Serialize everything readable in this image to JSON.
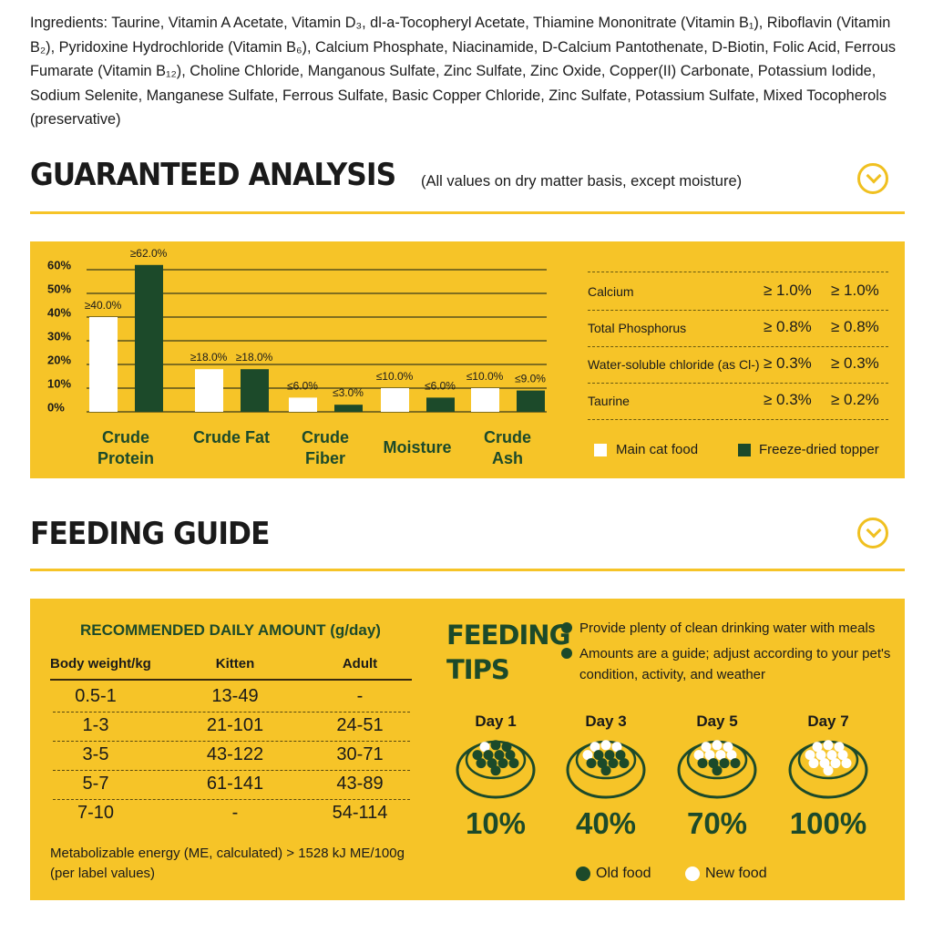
{
  "ingredients": "Ingredients: Taurine, Vitamin A Acetate, Vitamin D₃, dl-a-Tocopheryl Acetate, Thiamine Mononitrate (Vitamin B₁), Riboflavin (Vitamin B₂), Pyridoxine Hydrochloride (Vitamin B₆), Calcium Phosphate, Niacinamide, D-Calcium Pantothenate, D-Biotin, Folic Acid, Ferrous Fumarate (Vitamin B₁₂), Choline Chloride, Manganous Sulfate, Zinc Sulfate, Zinc Oxide, Copper(II) Carbonate, Potassium Iodide, Sodium Selenite, Manganese Sulfate, Ferrous Sulfate, Basic Copper Chloride, Zinc Sulfate, Potassium Sulfate, Mixed Tocopherols (preservative)",
  "analysis": {
    "title": "GUARANTEED ANALYSIS",
    "subtitle": "(All values on dry matter basis, except moisture)",
    "table": [
      [
        "Calcium",
        "≥ 1.0%",
        "≥ 1.0%"
      ],
      [
        "Total Phosphorus",
        "≥ 0.8%",
        "≥ 0.8%"
      ],
      [
        "Water-soluble chloride (as Cl-)",
        "≥ 0.3%",
        "≥ 0.3%"
      ],
      [
        "Taurine",
        "≥ 0.3%",
        "≥ 0.2%"
      ]
    ]
  },
  "chart_data": {
    "type": "bar",
    "categories": [
      "Crude Protein",
      "Crude Fat",
      "Crude Fiber",
      "Moisture",
      "Crude Ash"
    ],
    "series": [
      {
        "name": "Main cat food",
        "color": "#ffffff",
        "values": [
          40,
          18,
          6,
          10,
          10
        ],
        "value_labels": [
          "≥40.0%",
          "≥18.0%",
          "≤6.0%",
          "≤10.0%",
          "≤10.0%"
        ]
      },
      {
        "name": "Freeze-dried topper",
        "color": "#1c4a2a",
        "values": [
          62,
          18,
          3,
          6,
          9
        ],
        "value_labels": [
          "≥62.0%",
          "≥18.0%",
          "≤3.0%",
          "≤6.0%",
          "≤9.0%"
        ]
      }
    ],
    "ylim": [
      0,
      62
    ],
    "yticks": [
      {
        "value": 0,
        "label": "0%"
      },
      {
        "value": 10,
        "label": "10%"
      },
      {
        "value": 20,
        "label": "20%"
      },
      {
        "value": 30,
        "label": "30%"
      },
      {
        "value": 40,
        "label": "40%"
      },
      {
        "value": 50,
        "label": "50%"
      },
      {
        "value": 60,
        "label": "60%"
      }
    ],
    "grid": true
  },
  "feeding": {
    "title": "FEEDING GUIDE",
    "table_title": "RECOMMENDED DAILY AMOUNT (g/day)",
    "headers": [
      "Body weight/kg",
      "Kitten",
      "Adult"
    ],
    "rows": [
      [
        "0.5-1",
        "13-49",
        "-"
      ],
      [
        "1-3",
        "21-101",
        "24-51"
      ],
      [
        "3-5",
        "43-122",
        "30-71"
      ],
      [
        "5-7",
        "61-141",
        "43-89"
      ],
      [
        "7-10",
        "-",
        "54-114"
      ]
    ],
    "note": [
      "Metabolizable energy (ME, calculated) > 1528 kJ ME/100g",
      "(per label values)"
    ],
    "tips_title": "FEEDING TIPS",
    "tips": [
      "Provide plenty of clean drinking water with meals",
      "Amounts are a guide; adjust according to your pet's condition, activity, and weather"
    ],
    "days": [
      {
        "label": "Day 1",
        "percent": "10%"
      },
      {
        "label": "Day 3",
        "percent": "40%"
      },
      {
        "label": "Day 5",
        "percent": "70%"
      },
      {
        "label": "Day 7",
        "percent": "100%"
      }
    ],
    "legend": [
      "Old food",
      "New food"
    ]
  }
}
